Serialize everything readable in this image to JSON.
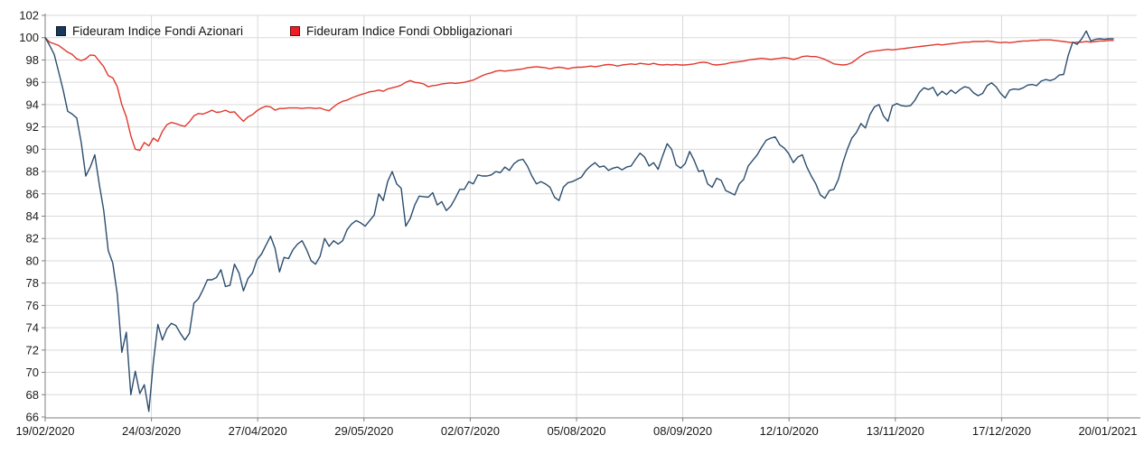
{
  "chart_data": {
    "type": "line",
    "title": "",
    "xlabel": "",
    "ylabel": "",
    "ylim": [
      66,
      102
    ],
    "y_ticks": [
      66,
      68,
      70,
      72,
      74,
      76,
      78,
      80,
      82,
      84,
      86,
      88,
      90,
      92,
      94,
      96,
      98,
      100,
      102
    ],
    "x_tick_labels": [
      "19/02/2020",
      "24/03/2020",
      "27/04/2020",
      "29/05/2020",
      "02/07/2020",
      "05/08/2020",
      "08/09/2020",
      "12/10/2020",
      "13/11/2020",
      "17/12/2020",
      "20/01/2021"
    ],
    "grid": true,
    "legend_position": "top-left-inside",
    "colors": {
      "grid": "#d9d9d9",
      "axis": "#7f7f7f",
      "tick_text": "#1a1a1a",
      "background": "#ffffff"
    },
    "series": [
      {
        "name": "Fideuram Indice Fondi Azionari",
        "swatch_color": "#17375d",
        "line_color": "#2b4d6e",
        "values": [
          100,
          99.3,
          98.5,
          96.9,
          95.3,
          93.4,
          93.15,
          92.8,
          90.6,
          87.6,
          88.4,
          89.5,
          86.9,
          84.5,
          80.9,
          79.8,
          77.0,
          71.8,
          73.6,
          68.0,
          70.1,
          68.1,
          68.9,
          66.5,
          70.9,
          74.3,
          72.9,
          73.9,
          74.4,
          74.2,
          73.5,
          72.9,
          73.5,
          76.2,
          76.6,
          77.4,
          78.3,
          78.3,
          78.5,
          79.2,
          77.7,
          77.8,
          79.7,
          78.9,
          77.3,
          78.4,
          78.9,
          80.1,
          80.6,
          81.4,
          82.2,
          81.1,
          79.0,
          80.3,
          80.2,
          81.0,
          81.5,
          81.8,
          81.0,
          80.0,
          79.7,
          80.4,
          82.0,
          81.3,
          81.8,
          81.5,
          81.8,
          82.8,
          83.3,
          83.6,
          83.4,
          83.1,
          83.6,
          84.1,
          86.0,
          85.4,
          87.1,
          88.0,
          86.9,
          86.5,
          83.1,
          83.8,
          85.0,
          85.8,
          85.75,
          85.7,
          86.1,
          85.0,
          85.3,
          84.5,
          84.9,
          85.6,
          86.4,
          86.4,
          87.1,
          86.9,
          87.7,
          87.6,
          87.6,
          87.7,
          88.0,
          87.9,
          88.4,
          88.1,
          88.7,
          89.0,
          89.1,
          88.5,
          87.6,
          86.9,
          87.1,
          86.9,
          86.6,
          85.7,
          85.4,
          86.6,
          87.0,
          87.1,
          87.3,
          87.5,
          88.1,
          88.5,
          88.8,
          88.4,
          88.5,
          88.1,
          88.3,
          88.4,
          88.15,
          88.4,
          88.5,
          89.1,
          89.65,
          89.3,
          88.5,
          88.8,
          88.2,
          89.4,
          90.5,
          90.0,
          88.6,
          88.3,
          88.7,
          89.8,
          89.0,
          88.0,
          88.1,
          86.9,
          86.6,
          87.4,
          87.2,
          86.3,
          86.1,
          85.9,
          86.9,
          87.3,
          88.5,
          89.0,
          89.5,
          90.2,
          90.8,
          91.0,
          91.1,
          90.4,
          90.1,
          89.6,
          88.8,
          89.3,
          89.5,
          88.4,
          87.6,
          86.9,
          85.9,
          85.6,
          86.3,
          86.4,
          87.3,
          88.8,
          90.0,
          91.0,
          91.5,
          92.3,
          91.9,
          93.1,
          93.8,
          94.0,
          93.0,
          92.5,
          93.9,
          94.1,
          93.9,
          93.85,
          93.9,
          94.4,
          95.1,
          95.5,
          95.35,
          95.55,
          94.8,
          95.2,
          94.9,
          95.3,
          95.0,
          95.35,
          95.6,
          95.5,
          95.05,
          94.8,
          95.0,
          95.7,
          95.95,
          95.6,
          95.0,
          94.6,
          95.3,
          95.4,
          95.35,
          95.5,
          95.75,
          95.8,
          95.7,
          96.1,
          96.25,
          96.15,
          96.3,
          96.65,
          96.7,
          98.4,
          99.6,
          99.4,
          99.9,
          100.6,
          99.7,
          99.85,
          99.9,
          99.85,
          99.9,
          99.9
        ]
      },
      {
        "name": "Fideuram Indice Fondi Obbligazionari",
        "swatch_color": "#ee1c25",
        "line_color": "#e0382f",
        "values": [
          100,
          99.6,
          99.45,
          99.3,
          99.0,
          98.7,
          98.5,
          98.1,
          97.95,
          98.1,
          98.45,
          98.4,
          97.9,
          97.4,
          96.6,
          96.4,
          95.6,
          94.0,
          92.9,
          91.2,
          90.0,
          89.9,
          90.6,
          90.3,
          91.0,
          90.7,
          91.6,
          92.2,
          92.4,
          92.3,
          92.15,
          92.05,
          92.45,
          93.0,
          93.2,
          93.15,
          93.3,
          93.5,
          93.3,
          93.35,
          93.5,
          93.3,
          93.35,
          92.9,
          92.5,
          92.9,
          93.1,
          93.45,
          93.7,
          93.85,
          93.8,
          93.5,
          93.65,
          93.65,
          93.7,
          93.7,
          93.7,
          93.65,
          93.7,
          93.7,
          93.65,
          93.7,
          93.55,
          93.45,
          93.8,
          94.1,
          94.3,
          94.4,
          94.6,
          94.75,
          94.9,
          95.0,
          95.15,
          95.2,
          95.3,
          95.2,
          95.4,
          95.5,
          95.6,
          95.75,
          96.0,
          96.15,
          96.0,
          95.95,
          95.85,
          95.6,
          95.7,
          95.75,
          95.85,
          95.9,
          95.95,
          95.9,
          95.95,
          96.0,
          96.1,
          96.2,
          96.4,
          96.6,
          96.75,
          96.85,
          97.0,
          97.05,
          97.0,
          97.05,
          97.1,
          97.15,
          97.2,
          97.3,
          97.35,
          97.4,
          97.35,
          97.3,
          97.2,
          97.3,
          97.35,
          97.3,
          97.2,
          97.3,
          97.35,
          97.35,
          97.4,
          97.45,
          97.4,
          97.45,
          97.55,
          97.6,
          97.55,
          97.45,
          97.55,
          97.6,
          97.65,
          97.6,
          97.7,
          97.65,
          97.6,
          97.7,
          97.6,
          97.55,
          97.6,
          97.55,
          97.6,
          97.55,
          97.55,
          97.6,
          97.65,
          97.75,
          97.8,
          97.75,
          97.6,
          97.55,
          97.6,
          97.65,
          97.75,
          97.8,
          97.85,
          97.9,
          98.0,
          98.05,
          98.1,
          98.15,
          98.1,
          98.05,
          98.1,
          98.15,
          98.2,
          98.15,
          98.05,
          98.15,
          98.3,
          98.35,
          98.3,
          98.3,
          98.2,
          98.05,
          97.85,
          97.65,
          97.6,
          97.55,
          97.6,
          97.75,
          98.05,
          98.35,
          98.6,
          98.75,
          98.8,
          98.85,
          98.9,
          98.95,
          98.9,
          98.95,
          99.0,
          99.05,
          99.1,
          99.15,
          99.2,
          99.25,
          99.3,
          99.35,
          99.4,
          99.35,
          99.4,
          99.45,
          99.5,
          99.55,
          99.6,
          99.6,
          99.65,
          99.65,
          99.65,
          99.7,
          99.65,
          99.6,
          99.55,
          99.6,
          99.55,
          99.6,
          99.65,
          99.7,
          99.7,
          99.75,
          99.75,
          99.8,
          99.8,
          99.8,
          99.75,
          99.7,
          99.65,
          99.6,
          99.55,
          99.6,
          99.6,
          99.65,
          99.6,
          99.65,
          99.7,
          99.7,
          99.75,
          99.75
        ]
      }
    ]
  }
}
